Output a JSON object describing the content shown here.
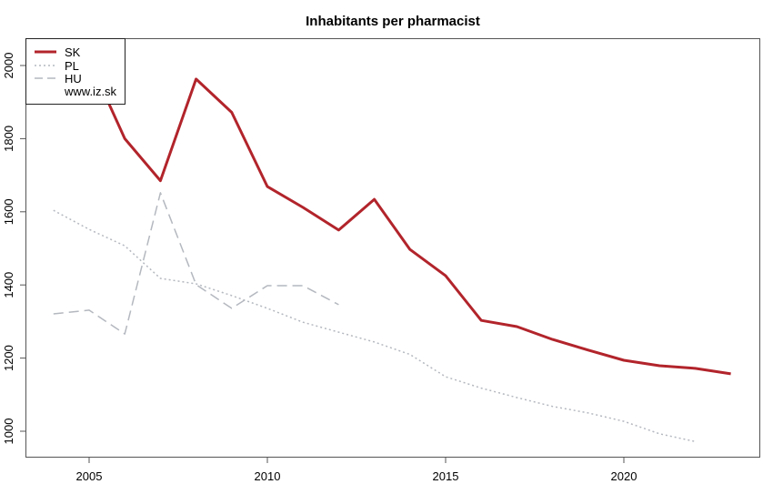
{
  "chart_data": {
    "type": "line",
    "title": "Inhabitants per pharmacist",
    "xlabel": "",
    "ylabel": "",
    "xlim": [
      2003.25,
      2023.75
    ],
    "ylim": [
      940,
      2070
    ],
    "x_ticks": [
      2005,
      2010,
      2015,
      2020
    ],
    "y_ticks": [
      1000,
      1200,
      1400,
      1600,
      1800,
      2000
    ],
    "grid": false,
    "legend_position": "top-left",
    "series": [
      {
        "name": "SK",
        "color": "#b2242b",
        "style": "solid",
        "width": 3,
        "x": [
          2005,
          2006,
          2007,
          2008,
          2009,
          2010,
          2011,
          2012,
          2013,
          2014,
          2015,
          2016,
          2017,
          2018,
          2019,
          2020,
          2021,
          2022,
          2023
        ],
        "values": [
          2015,
          1800,
          1685,
          1963,
          1872,
          1669,
          1612,
          1550,
          1634,
          1497,
          1425,
          1303,
          1286,
          1251,
          1222,
          1194,
          1179,
          1172,
          1157
        ]
      },
      {
        "name": "PL",
        "color": "#b4b8bf",
        "style": "dotted",
        "width": 1.5,
        "x": [
          2004,
          2005,
          2006,
          2007,
          2008,
          2009,
          2010,
          2011,
          2012,
          2013,
          2014,
          2015,
          2016,
          2017,
          2018,
          2019,
          2020,
          2021,
          2022
        ],
        "values": [
          1604,
          1552,
          1507,
          1418,
          1403,
          1371,
          1336,
          1298,
          1271,
          1244,
          1210,
          1149,
          1118,
          1092,
          1068,
          1050,
          1027,
          993,
          972
        ]
      },
      {
        "name": "HU",
        "color": "#b4b8bf",
        "style": "dashed",
        "width": 1.5,
        "x": [
          2004,
          2005,
          2006,
          2007,
          2008,
          2009,
          2010,
          2011,
          2012
        ],
        "values": [
          1321,
          1331,
          1266,
          1652,
          1401,
          1336,
          1398,
          1398,
          1346
        ]
      }
    ],
    "annotations": [
      "www.iz.sk"
    ]
  },
  "legend": {
    "items": [
      {
        "label": "SK"
      },
      {
        "label": "PL"
      },
      {
        "label": "HU"
      }
    ],
    "source": "www.iz.sk"
  }
}
